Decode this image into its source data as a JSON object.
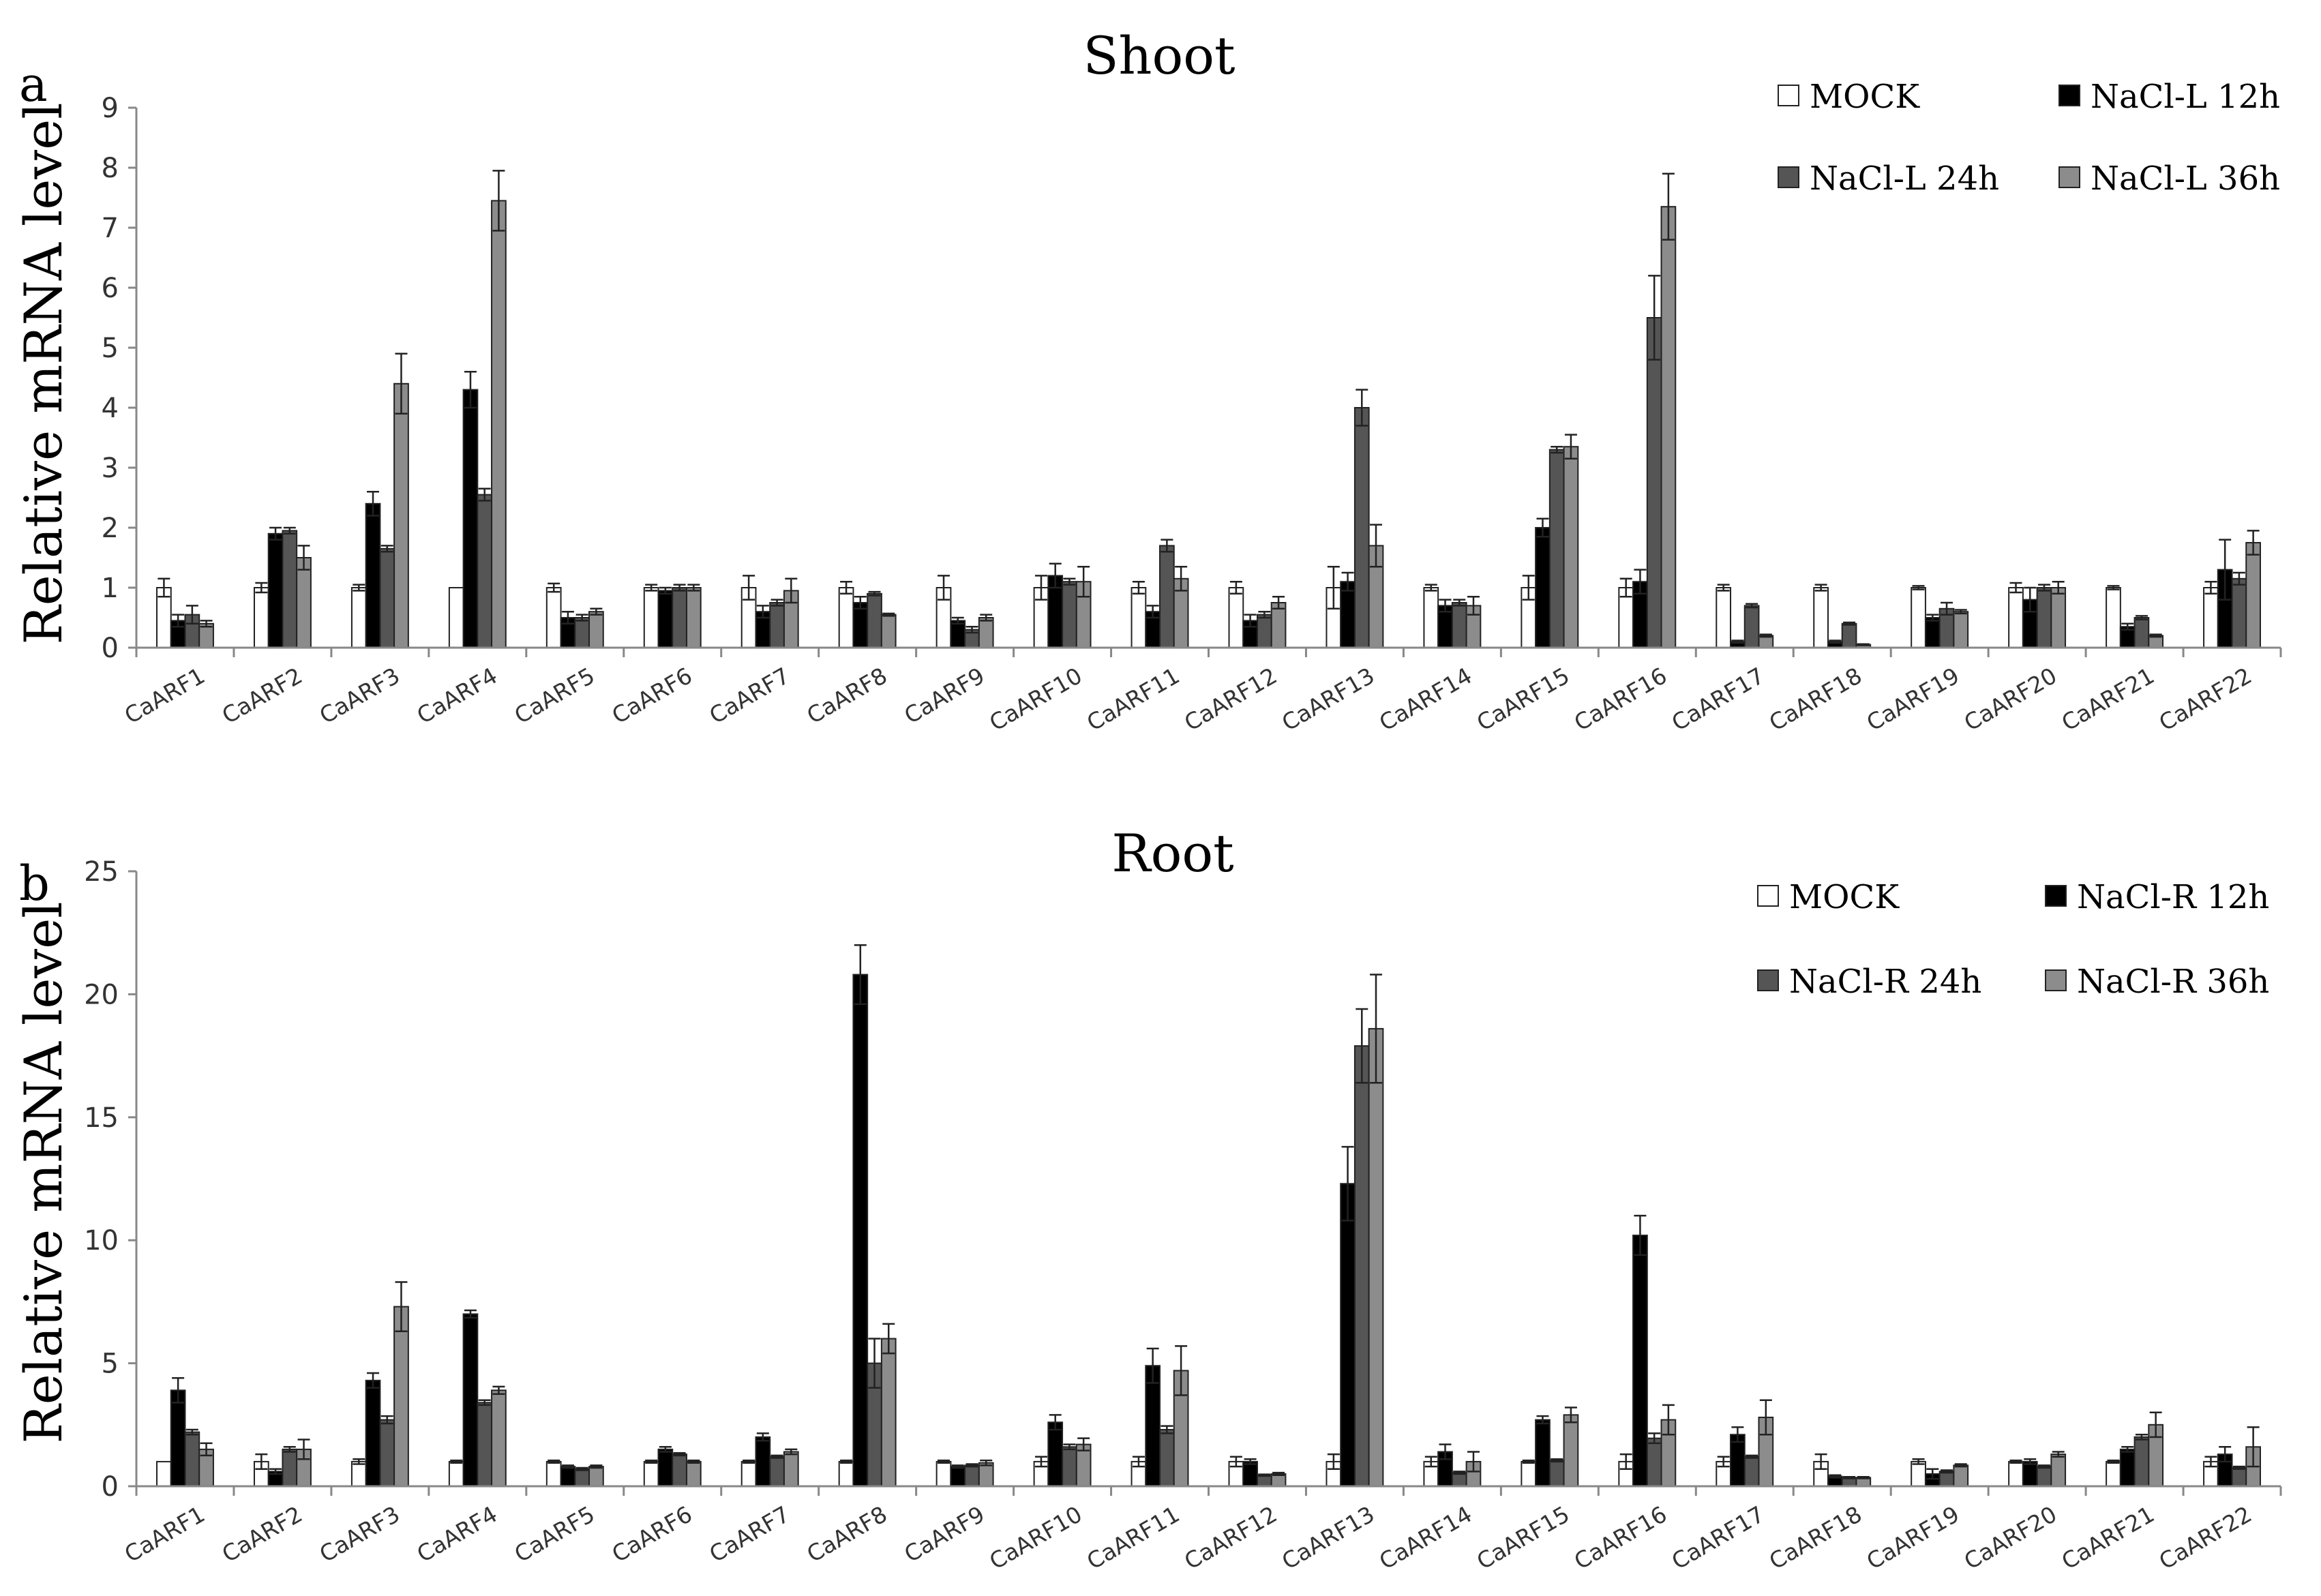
{
  "chart_data": [
    {
      "type": "bar",
      "panel": "a",
      "title": "Shoot",
      "ylabel": "Relative mRNA level",
      "xlabel": "",
      "ylim": [
        0,
        9
      ],
      "yticks": [
        0,
        1,
        2,
        3,
        4,
        5,
        6,
        7,
        8,
        9
      ],
      "legend_position": "top-right",
      "grid": false,
      "categories": [
        "CaARF1",
        "CaARF2",
        "CaARF3",
        "CaARF4",
        "CaARF5",
        "CaARF6",
        "CaARF7",
        "CaARF8",
        "CaARF9",
        "CaARF10",
        "CaARF11",
        "CaARF12",
        "CaARF13",
        "CaARF14",
        "CaARF15",
        "CaARF16",
        "CaARF17",
        "CaARF18",
        "CaARF19",
        "CaARF20",
        "CaARF21",
        "CaARF22"
      ],
      "series": [
        {
          "name": "MOCK",
          "color": "#ffffff",
          "values": [
            1.0,
            1.0,
            1.0,
            1.0,
            1.0,
            1.0,
            1.0,
            1.0,
            1.0,
            1.0,
            1.0,
            1.0,
            1.0,
            1.0,
            1.0,
            1.0,
            1.0,
            1.0,
            1.0,
            1.0,
            1.0,
            1.0
          ],
          "errors": [
            0.15,
            0.08,
            0.05,
            0.0,
            0.07,
            0.05,
            0.2,
            0.1,
            0.2,
            0.2,
            0.1,
            0.1,
            0.35,
            0.05,
            0.2,
            0.15,
            0.05,
            0.05,
            0.03,
            0.08,
            0.03,
            0.1
          ]
        },
        {
          "name": "NaCl-L 12h",
          "color": "#000000",
          "values": [
            0.45,
            1.9,
            2.4,
            4.3,
            0.5,
            0.95,
            0.6,
            0.75,
            0.45,
            1.2,
            0.6,
            0.45,
            1.1,
            0.7,
            2.0,
            1.1,
            0.1,
            0.1,
            0.5,
            0.8,
            0.35,
            1.3
          ],
          "errors": [
            0.1,
            0.1,
            0.2,
            0.3,
            0.1,
            0.05,
            0.1,
            0.1,
            0.05,
            0.2,
            0.1,
            0.1,
            0.15,
            0.1,
            0.15,
            0.2,
            0.02,
            0.02,
            0.05,
            0.2,
            0.05,
            0.5
          ]
        },
        {
          "name": "NaCl-L 24h",
          "color": "#555555",
          "values": [
            0.55,
            1.95,
            1.65,
            2.55,
            0.5,
            1.0,
            0.75,
            0.9,
            0.3,
            1.1,
            1.7,
            0.55,
            4.0,
            0.75,
            3.3,
            5.5,
            0.7,
            0.4,
            0.65,
            1.0,
            0.5,
            1.15
          ],
          "errors": [
            0.15,
            0.05,
            0.05,
            0.1,
            0.05,
            0.05,
            0.05,
            0.03,
            0.05,
            0.05,
            0.1,
            0.05,
            0.3,
            0.05,
            0.05,
            0.7,
            0.03,
            0.02,
            0.1,
            0.05,
            0.03,
            0.1
          ]
        },
        {
          "name": "NaCl-L 36h",
          "color": "#8c8c8c",
          "values": [
            0.4,
            1.5,
            4.4,
            7.45,
            0.6,
            1.0,
            0.95,
            0.55,
            0.5,
            1.1,
            1.15,
            0.75,
            1.7,
            0.7,
            3.35,
            7.35,
            0.2,
            0.05,
            0.6,
            1.0,
            0.2,
            1.75
          ],
          "errors": [
            0.05,
            0.2,
            0.5,
            0.5,
            0.05,
            0.05,
            0.2,
            0.02,
            0.05,
            0.25,
            0.2,
            0.1,
            0.35,
            0.15,
            0.2,
            0.55,
            0.02,
            0.01,
            0.03,
            0.1,
            0.02,
            0.2
          ]
        }
      ]
    },
    {
      "type": "bar",
      "panel": "b",
      "title": "Root",
      "ylabel": "Relative mRNA level",
      "xlabel": "",
      "ylim": [
        0,
        25
      ],
      "yticks": [
        0,
        5,
        10,
        15,
        20,
        25
      ],
      "legend_position": "top-right",
      "grid": false,
      "categories": [
        "CaARF1",
        "CaARF2",
        "CaARF3",
        "CaARF4",
        "CaARF5",
        "CaARF6",
        "CaARF7",
        "CaARF8",
        "CaARF9",
        "CaARF10",
        "CaARF11",
        "CaARF12",
        "CaARF13",
        "CaARF14",
        "CaARF15",
        "CaARF16",
        "CaARF17",
        "CaARF18",
        "CaARF19",
        "CaARF20",
        "CaARF21",
        "CaARF22"
      ],
      "series": [
        {
          "name": "MOCK",
          "color": "#ffffff",
          "values": [
            1.0,
            1.0,
            1.0,
            1.0,
            1.0,
            1.0,
            1.0,
            1.0,
            1.0,
            1.0,
            1.0,
            1.0,
            1.0,
            1.0,
            1.0,
            1.0,
            1.0,
            1.0,
            1.0,
            1.0,
            1.0,
            1.0
          ],
          "errors": [
            0.0,
            0.3,
            0.1,
            0.05,
            0.05,
            0.05,
            0.05,
            0.05,
            0.05,
            0.2,
            0.2,
            0.2,
            0.3,
            0.2,
            0.05,
            0.3,
            0.2,
            0.3,
            0.1,
            0.05,
            0.05,
            0.2
          ]
        },
        {
          "name": "NaCl-R 12h",
          "color": "#000000",
          "values": [
            3.9,
            0.6,
            4.3,
            7.0,
            0.8,
            1.5,
            2.0,
            20.8,
            0.8,
            2.6,
            4.9,
            1.0,
            12.3,
            1.4,
            2.7,
            10.2,
            2.1,
            0.4,
            0.5,
            1.0,
            1.5,
            1.3
          ],
          "errors": [
            0.5,
            0.1,
            0.3,
            0.15,
            0.05,
            0.1,
            0.15,
            1.2,
            0.05,
            0.3,
            0.7,
            0.1,
            1.5,
            0.3,
            0.15,
            0.8,
            0.3,
            0.05,
            0.2,
            0.1,
            0.1,
            0.3
          ]
        },
        {
          "name": "NaCl-R 24h",
          "color": "#555555",
          "values": [
            2.2,
            1.5,
            2.7,
            3.4,
            0.7,
            1.3,
            1.2,
            5.0,
            0.85,
            1.6,
            2.3,
            0.45,
            17.9,
            0.55,
            1.05,
            1.95,
            1.2,
            0.35,
            0.6,
            0.8,
            2.0,
            0.75
          ],
          "errors": [
            0.1,
            0.1,
            0.15,
            0.1,
            0.05,
            0.05,
            0.05,
            1.0,
            0.05,
            0.1,
            0.15,
            0.03,
            1.5,
            0.05,
            0.05,
            0.2,
            0.05,
            0.03,
            0.05,
            0.05,
            0.1,
            0.05
          ]
        },
        {
          "name": "NaCl-R 36h",
          "color": "#8c8c8c",
          "values": [
            1.5,
            1.5,
            7.3,
            3.9,
            0.8,
            1.0,
            1.4,
            6.0,
            0.95,
            1.7,
            4.7,
            0.5,
            18.6,
            1.0,
            2.9,
            2.7,
            2.8,
            0.35,
            0.85,
            1.3,
            2.5,
            1.6
          ],
          "errors": [
            0.25,
            0.4,
            1.0,
            0.15,
            0.05,
            0.05,
            0.1,
            0.6,
            0.1,
            0.25,
            1.0,
            0.05,
            2.2,
            0.4,
            0.3,
            0.6,
            0.7,
            0.03,
            0.05,
            0.1,
            0.5,
            0.8
          ]
        }
      ]
    }
  ]
}
